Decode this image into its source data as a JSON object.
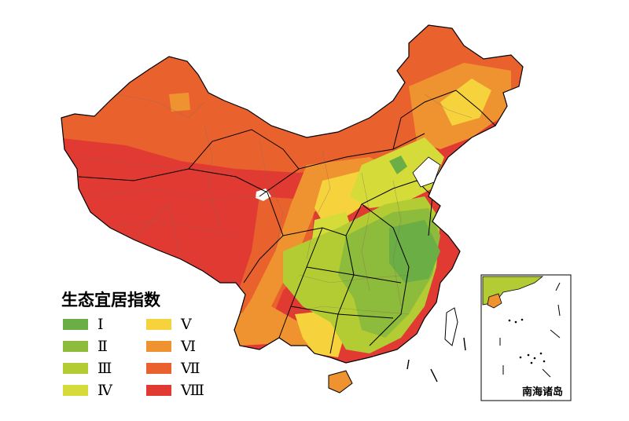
{
  "legend": {
    "title": "生态宜居指数",
    "items": [
      {
        "label": "Ⅰ",
        "color": "#6aae45"
      },
      {
        "label": "Ⅱ",
        "color": "#8dbb3b"
      },
      {
        "label": "Ⅲ",
        "color": "#b3cc34"
      },
      {
        "label": "Ⅳ",
        "color": "#d5dc3a"
      },
      {
        "label": "Ⅴ",
        "color": "#f6d33c"
      },
      {
        "label": "Ⅵ",
        "color": "#ef9331"
      },
      {
        "label": "Ⅶ",
        "color": "#e9622e"
      },
      {
        "label": "Ⅷ",
        "color": "#e13a33"
      }
    ]
  },
  "inset": {
    "label": "南海诸岛"
  }
}
